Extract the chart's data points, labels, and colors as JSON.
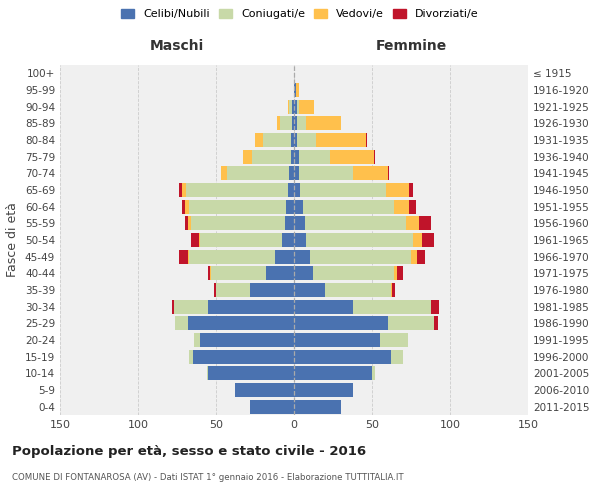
{
  "age_groups": [
    "0-4",
    "5-9",
    "10-14",
    "15-19",
    "20-24",
    "25-29",
    "30-34",
    "35-39",
    "40-44",
    "45-49",
    "50-54",
    "55-59",
    "60-64",
    "65-69",
    "70-74",
    "75-79",
    "80-84",
    "85-89",
    "90-94",
    "95-99",
    "100+"
  ],
  "birth_years": [
    "2011-2015",
    "2006-2010",
    "2001-2005",
    "1996-2000",
    "1991-1995",
    "1986-1990",
    "1981-1985",
    "1976-1980",
    "1971-1975",
    "1966-1970",
    "1961-1965",
    "1956-1960",
    "1951-1955",
    "1946-1950",
    "1941-1945",
    "1936-1940",
    "1931-1935",
    "1926-1930",
    "1921-1925",
    "1916-1920",
    "≤ 1915"
  ],
  "maschi": {
    "celibi": [
      28,
      38,
      55,
      65,
      60,
      68,
      55,
      28,
      18,
      12,
      8,
      6,
      5,
      4,
      3,
      2,
      2,
      1,
      1,
      0,
      0
    ],
    "coniugati": [
      0,
      0,
      1,
      2,
      4,
      8,
      22,
      22,
      35,
      55,
      52,
      60,
      62,
      65,
      40,
      25,
      18,
      8,
      2,
      0,
      0
    ],
    "vedovi": [
      0,
      0,
      0,
      0,
      0,
      0,
      0,
      0,
      1,
      1,
      1,
      2,
      3,
      3,
      4,
      6,
      5,
      2,
      1,
      0,
      0
    ],
    "divorziati": [
      0,
      0,
      0,
      0,
      0,
      0,
      1,
      1,
      1,
      6,
      5,
      2,
      2,
      2,
      0,
      0,
      0,
      0,
      0,
      0,
      0
    ]
  },
  "femmine": {
    "nubili": [
      30,
      38,
      50,
      62,
      55,
      60,
      38,
      20,
      12,
      10,
      8,
      7,
      6,
      4,
      3,
      3,
      2,
      2,
      2,
      1,
      0
    ],
    "coniugate": [
      0,
      0,
      2,
      8,
      18,
      30,
      50,
      42,
      52,
      65,
      68,
      65,
      58,
      55,
      35,
      20,
      12,
      6,
      1,
      0,
      0
    ],
    "vedove": [
      0,
      0,
      0,
      0,
      0,
      0,
      0,
      1,
      2,
      4,
      6,
      8,
      10,
      15,
      22,
      28,
      32,
      22,
      10,
      2,
      0
    ],
    "divorziate": [
      0,
      0,
      0,
      0,
      0,
      2,
      5,
      2,
      4,
      5,
      8,
      8,
      4,
      2,
      1,
      1,
      1,
      0,
      0,
      0,
      0
    ]
  },
  "colors": {
    "celibi_nubili": "#4a72b0",
    "coniugati": "#c8d9a8",
    "vedovi": "#ffc04c",
    "divorziati": "#c0142a"
  },
  "title": "Popolazione per età, sesso e stato civile - 2016",
  "subtitle": "COMUNE DI FONTANAROSA (AV) - Dati ISTAT 1° gennaio 2016 - Elaborazione TUTTITALIA.IT",
  "xlabel_left": "Maschi",
  "xlabel_right": "Femmine",
  "ylabel_left": "Fasce di età",
  "xlim": 150,
  "bg_color": "#f0f0f0",
  "grid_color": "#cccccc"
}
